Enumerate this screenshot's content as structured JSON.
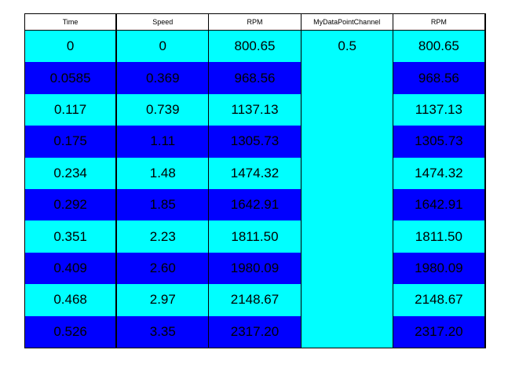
{
  "table": {
    "columns": [
      {
        "header": "Time",
        "values": [
          "0",
          "0.0585",
          "0.117",
          "0.175",
          "0.234",
          "0.292",
          "0.351",
          "0.409",
          "0.468",
          "0.526"
        ]
      },
      {
        "header": "Speed",
        "values": [
          "0",
          "0.369",
          "0.739",
          "1.11",
          "1.48",
          "1.85",
          "2.23",
          "2.60",
          "2.97",
          "3.35"
        ]
      },
      {
        "header": "RPM",
        "values": [
          "800.65",
          "968.56",
          "1137.13",
          "1305.73",
          "1474.32",
          "1642.91",
          "1811.50",
          "1980.09",
          "2148.67",
          "2317.20"
        ]
      },
      {
        "header": "MyDataPointChannel",
        "values": [
          "0.5"
        ]
      },
      {
        "header": "RPM",
        "values": [
          "800.65",
          "968.56",
          "1137.13",
          "1305.73",
          "1474.32",
          "1642.91",
          "1811.50",
          "1980.09",
          "2148.67",
          "2317.20"
        ]
      }
    ]
  }
}
